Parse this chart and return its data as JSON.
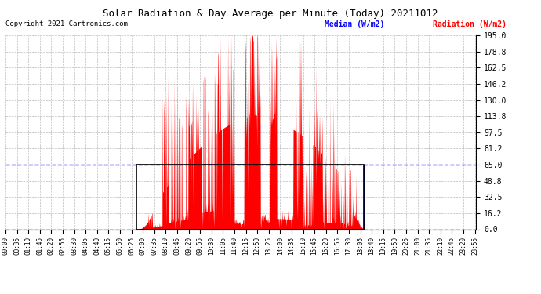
{
  "title": "Solar Radiation & Day Average per Minute (Today) 20211012",
  "copyright": "Copyright 2021 Cartronics.com",
  "legend_median": "Median (W/m2)",
  "legend_radiation": "Radiation (W/m2)",
  "ymin": 0.0,
  "ymax": 195.0,
  "yticks": [
    0.0,
    16.2,
    32.5,
    48.8,
    65.0,
    81.2,
    97.5,
    113.8,
    130.0,
    146.2,
    162.5,
    178.8,
    195.0
  ],
  "median_value": 65.0,
  "bg_color": "#ffffff",
  "grid_color": "#aaaaaa",
  "radiation_color": "#ff0000",
  "median_color": "#0000ff",
  "zero_line_color": "#0000ff",
  "title_color": "#000000",
  "copyright_color": "#000000",
  "sunrise_minute": 400,
  "sunset_minute": 1095,
  "total_minutes": 1440,
  "tick_interval": 35
}
